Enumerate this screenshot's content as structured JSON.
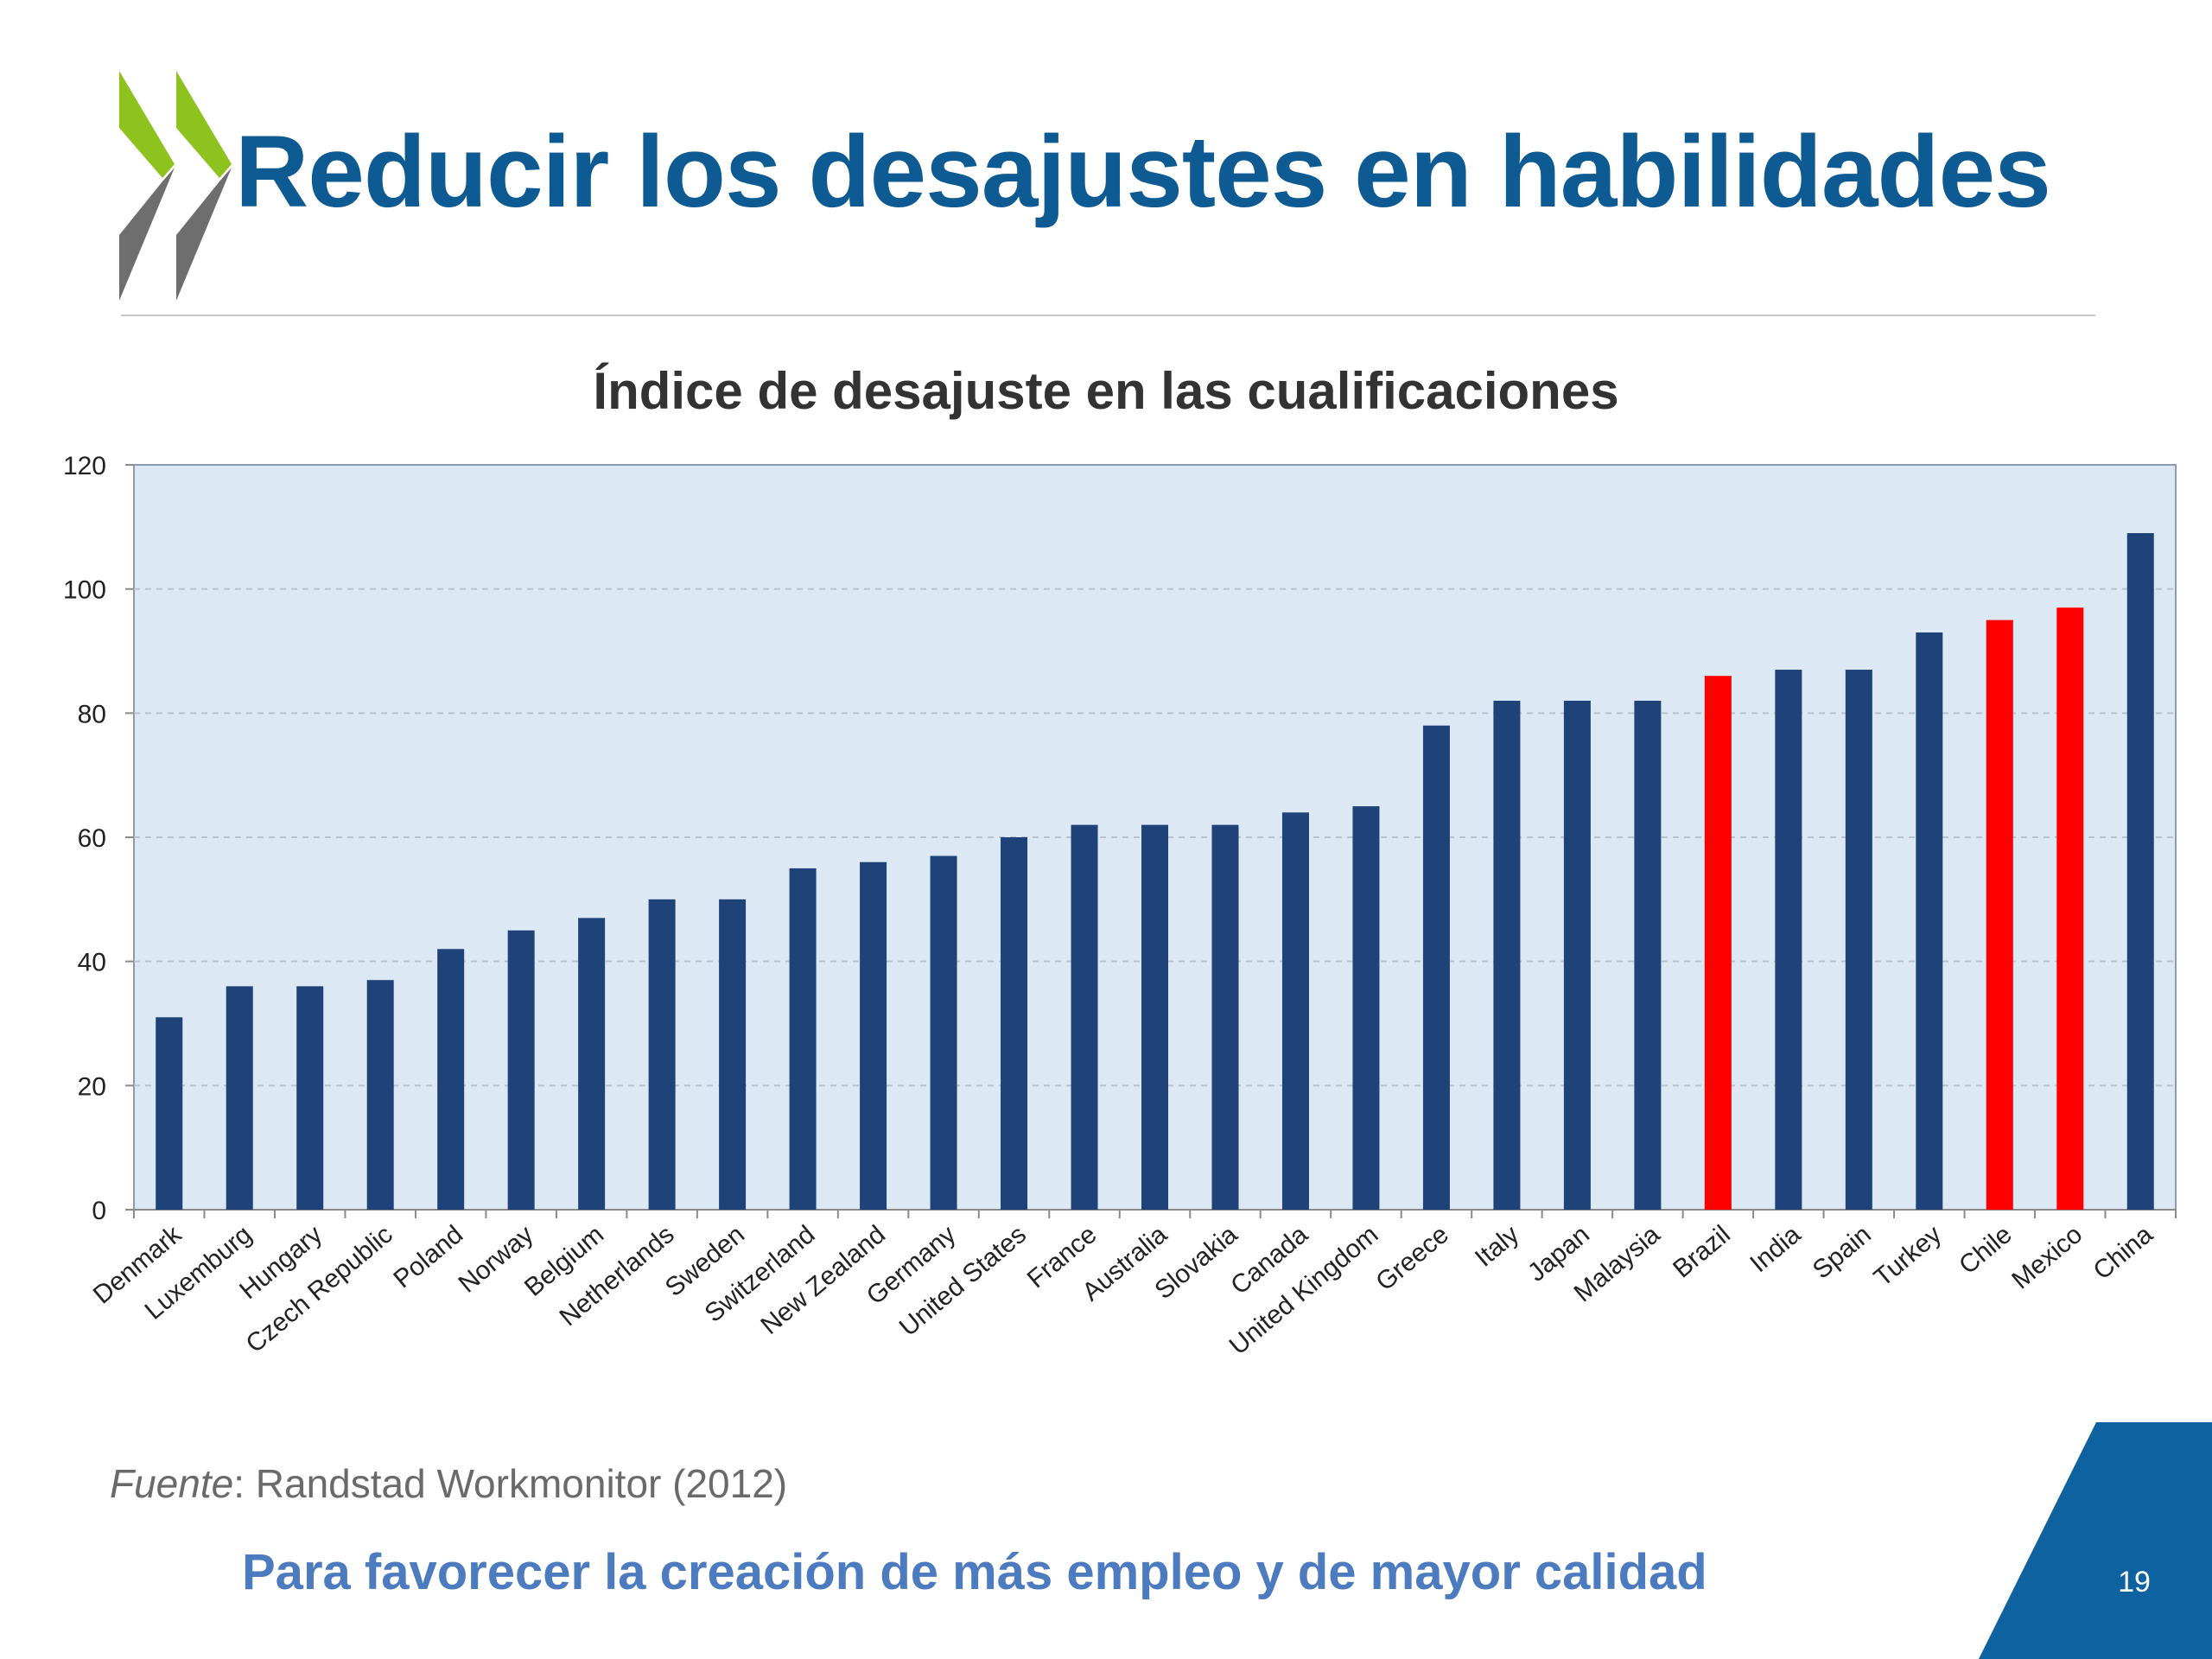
{
  "slide": {
    "title": "Reducir los desajustes en habilidades",
    "source_label": "Fuente",
    "source_text": ": Randstad Workmonitor (2012)",
    "tagline": "Para favorecer la creación de más empleo y de mayor calidad",
    "page_number": "19"
  },
  "colors": {
    "title": "#0e5a93",
    "logo_green": "#8dc21f",
    "logo_grey": "#6e6e6e",
    "bar": "#1f4379",
    "highlight_bar": "#ff0000",
    "plot_background": "#dde8f5",
    "corner": "#0f62a0"
  },
  "chart_data": {
    "type": "bar",
    "title": "Índice de desajuste en las cualificaciones",
    "xlabel": "",
    "ylabel": "",
    "ylim": [
      0,
      120
    ],
    "yticks": [
      0,
      20,
      40,
      60,
      80,
      100,
      120
    ],
    "grid": true,
    "categories": [
      "Denmark",
      "Luxemburg",
      "Hungary",
      "Czech Republic",
      "Poland",
      "Norway",
      "Belgium",
      "Netherlands",
      "Sweden",
      "Switzerland",
      "New Zealand",
      "Germany",
      "United States",
      "France",
      "Australia",
      "Slovakia",
      "Canada",
      "United Kingdom",
      "Greece",
      "Italy",
      "Japan",
      "Malaysia",
      "Brazil",
      "India",
      "Spain",
      "Turkey",
      "Chile",
      "Mexico",
      "China"
    ],
    "values": [
      31,
      36,
      36,
      37,
      42,
      45,
      47,
      50,
      50,
      55,
      56,
      57,
      60,
      62,
      62,
      62,
      64,
      65,
      78,
      82,
      82,
      82,
      86,
      87,
      87,
      93,
      95,
      97,
      109
    ],
    "highlighted": [
      "Brazil",
      "Chile",
      "Mexico"
    ]
  }
}
